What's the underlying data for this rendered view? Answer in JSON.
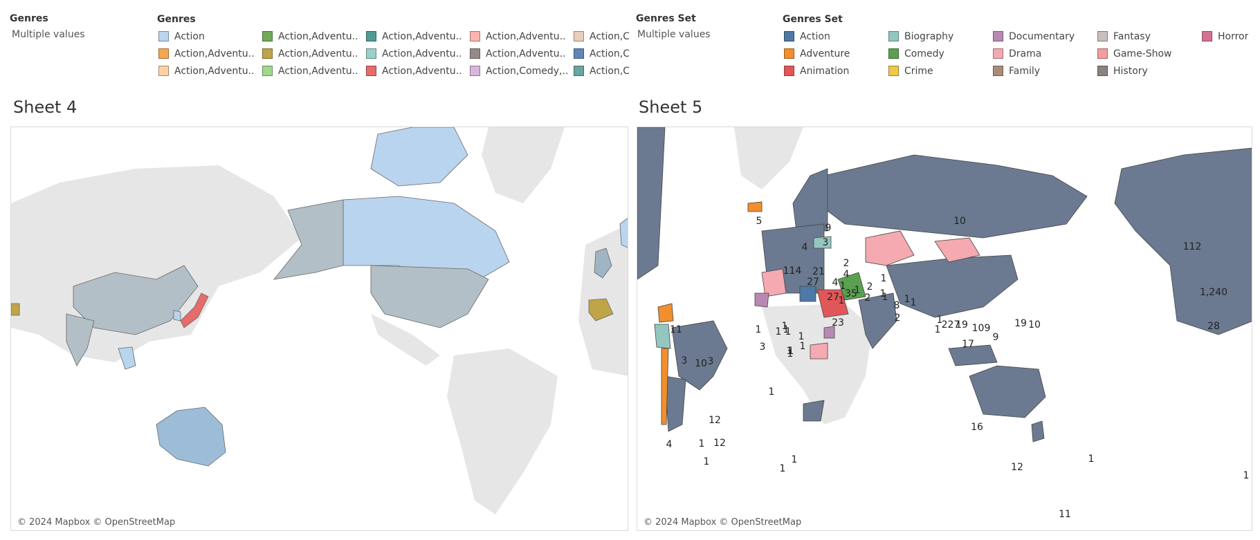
{
  "filters": {
    "left": {
      "title": "Genres",
      "value": "Multiple values"
    },
    "right": {
      "title": "Genres Set",
      "value": "Multiple values"
    }
  },
  "legend_genres": {
    "title": "Genres",
    "items": [
      {
        "label": "Action",
        "color": "#b9d4ee"
      },
      {
        "label": "Action,Adventu..",
        "color": "#f5a64f"
      },
      {
        "label": "Action,Adventu..",
        "color": "#fdd1a3"
      },
      {
        "label": "Action,Adventu..",
        "color": "#6fab5a"
      },
      {
        "label": "Action,Adventu..",
        "color": "#bfa546"
      },
      {
        "label": "Action,Adventu..",
        "color": "#a0d88e"
      },
      {
        "label": "Action,Adventu..",
        "color": "#4e9b96"
      },
      {
        "label": "Action,Adventu..",
        "color": "#9bcfca"
      },
      {
        "label": "Action,Adventu..",
        "color": "#e76b6b"
      },
      {
        "label": "Action,Adventu..",
        "color": "#fdb3ae"
      },
      {
        "label": "Action,Adventu..",
        "color": "#948b89"
      },
      {
        "label": "Action,Comedy,..",
        "color": "#d9b6d9"
      },
      {
        "label": "Action,C",
        "color": "#e9cdbd"
      },
      {
        "label": "Action,C",
        "color": "#5f86b6"
      },
      {
        "label": "Action,C",
        "color": "#6aa59f"
      }
    ]
  },
  "legend_genres_set": {
    "title": "Genres Set",
    "items": [
      {
        "label": "Action",
        "color": "#4e79a7"
      },
      {
        "label": "Adventure",
        "color": "#f28e2b"
      },
      {
        "label": "Animation",
        "color": "#e15759"
      },
      {
        "label": "Biography",
        "color": "#94c6c0"
      },
      {
        "label": "Comedy",
        "color": "#59a14f"
      },
      {
        "label": "Crime",
        "color": "#edc948"
      },
      {
        "label": "Documentary",
        "color": "#b889b3"
      },
      {
        "label": "Drama",
        "color": "#f5a9b1"
      },
      {
        "label": "Family",
        "color": "#a98c78"
      },
      {
        "label": "Fantasy",
        "color": "#c7bfbb"
      },
      {
        "label": "Game-Show",
        "color": "#f49da1"
      },
      {
        "label": "History",
        "color": "#8a8380"
      },
      {
        "label": "Horror",
        "color": "#d37295"
      }
    ]
  },
  "sheet4": {
    "title": "Sheet 4",
    "copyright": "© 2024 Mapbox © OpenStreetMap"
  },
  "sheet5": {
    "title": "Sheet 5",
    "copyright": "© 2024 Mapbox © OpenStreetMap",
    "labels": [
      "10",
      "112",
      "1,240",
      "28",
      "5",
      "9",
      "4",
      "3",
      "2",
      "114",
      "21",
      "4",
      "27",
      "4",
      "1",
      "1",
      "1",
      "2",
      "35",
      "2",
      "1",
      "1",
      "8",
      "1",
      "1",
      "27",
      "1",
      "2",
      "227",
      "1",
      "19",
      "19",
      "10",
      "109",
      "9",
      "1",
      "17",
      "23",
      "1",
      "1",
      "11",
      "10",
      "3",
      "3",
      "1",
      "1",
      "1",
      "1",
      "1",
      "1",
      "1",
      "1",
      "1",
      "3",
      "12",
      "1",
      "4",
      "12",
      "1",
      "1",
      "16",
      "12",
      "1",
      "11",
      "1",
      "1"
    ]
  }
}
